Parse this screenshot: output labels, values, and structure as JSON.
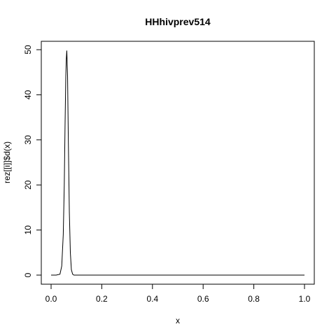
{
  "chart_data": {
    "type": "line",
    "title": "HHhivprev514",
    "xlabel": "x",
    "ylabel": "rez[[i]]$d(x)",
    "xlim": [
      0,
      1
    ],
    "ylim": [
      0,
      50
    ],
    "xticks": [
      0,
      0.2,
      0.4,
      0.6,
      0.8,
      1
    ],
    "xtick_labels": [
      "0.0",
      "0.2",
      "0.4",
      "0.6",
      "0.8",
      "1.0"
    ],
    "yticks": [
      0,
      10,
      20,
      30,
      40,
      50
    ],
    "ytick_labels": [
      "0",
      "10",
      "20",
      "30",
      "40",
      "50"
    ],
    "grid": false,
    "series": [
      {
        "x": [
          0,
          0.02,
          0.035,
          0.042,
          0.048,
          0.052,
          0.055,
          0.058,
          0.06,
          0.062,
          0.065,
          0.068,
          0.072,
          0.076,
          0.08,
          0.085,
          0.09,
          0.1,
          0.2,
          0.4,
          0.6,
          0.8,
          1.0
        ],
        "values": [
          0,
          0,
          0.2,
          2,
          9,
          20,
          33,
          44,
          48,
          49.8,
          44,
          30,
          14,
          5,
          1.2,
          0.2,
          0,
          0,
          0,
          0,
          0,
          0,
          0
        ],
        "color": "#000000"
      }
    ]
  }
}
